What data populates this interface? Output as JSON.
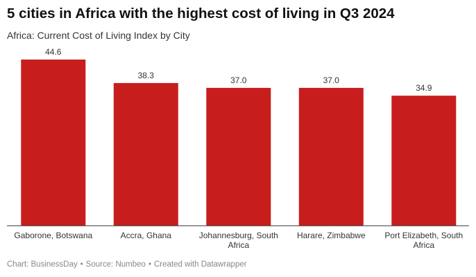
{
  "chart_data": {
    "type": "bar",
    "title": "5 cities in Africa with the highest cost of living in Q3 2024",
    "subtitle": "Africa: Current Cost of Living Index by City",
    "categories": [
      [
        "Gaborone, Botswana"
      ],
      [
        "Accra, Ghana"
      ],
      [
        "Johannesburg, South",
        "Africa"
      ],
      [
        "Harare, Zimbabwe"
      ],
      [
        "Port Elizabeth, South",
        "Africa"
      ]
    ],
    "values": [
      44.6,
      38.3,
      37.0,
      37.0,
      34.9
    ],
    "value_labels": [
      "44.6",
      "38.3",
      "37.0",
      "37.0",
      "34.9"
    ],
    "ylim": [
      0,
      44.6
    ],
    "grid": false,
    "bar_color": "#c71e1d"
  },
  "footer": {
    "chart_credit": "Chart: BusinessDay",
    "source": "Source: Numbeo",
    "created_with": "Created with Datawrapper"
  }
}
